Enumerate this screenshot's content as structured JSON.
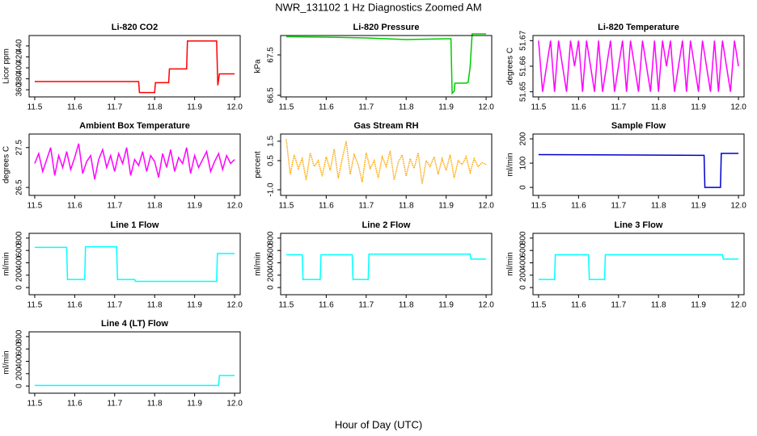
{
  "title": "NWR_131102  1 Hz Diagnostics Zoomed AM",
  "xlabel": "Hour of Day (UTC)",
  "chart_data": [
    {
      "type": "line",
      "title": "Li-820 CO2",
      "ylabel": "Licor ppm",
      "color": "#ff0000",
      "xlim": [
        11.486,
        12.014
      ],
      "xticks": [
        11.5,
        11.6,
        11.7,
        11.8,
        11.9,
        {
          "value": 12,
          "label": "12.0"
        }
      ],
      "ylim": [
        347,
        459
      ],
      "yticks": [
        360,
        380,
        400,
        420,
        440
      ],
      "x": [
        11.5,
        11.76,
        11.762,
        11.8,
        11.802,
        11.835,
        11.837,
        11.88,
        11.882,
        11.955,
        11.958,
        11.962,
        11.965,
        12.0
      ],
      "values": [
        375,
        375,
        355,
        355,
        373,
        373,
        398,
        398,
        449,
        449,
        368,
        389,
        389,
        389
      ]
    },
    {
      "type": "line",
      "title": "Li-820 Pressure",
      "ylabel": "kPa",
      "color": "#00cc00",
      "xlim": [
        11.486,
        12.014
      ],
      "xticks": [
        11.5,
        11.6,
        11.7,
        11.8,
        11.9,
        {
          "value": 12,
          "label": "12.0"
        }
      ],
      "ylim": [
        66.46,
        67.98
      ],
      "yticks": [
        66.5,
        67.5
      ],
      "x": [
        11.5,
        11.6,
        11.7,
        11.8,
        11.9,
        11.912,
        11.915,
        11.92,
        11.922,
        11.95,
        11.955,
        11.96,
        11.965,
        12.0
      ],
      "values": [
        67.95,
        67.94,
        67.92,
        67.88,
        67.9,
        67.9,
        66.55,
        66.6,
        66.8,
        66.8,
        66.82,
        67.2,
        68.02,
        68.02
      ]
    },
    {
      "type": "line",
      "title": "Li-820 Temperature",
      "ylabel": "degrees C",
      "color": "#ff00ff",
      "xlim": [
        11.486,
        12.014
      ],
      "xticks": [
        11.5,
        11.6,
        11.7,
        11.8,
        11.9,
        {
          "value": 12,
          "label": "12.0"
        }
      ],
      "ylim": [
        51.648,
        51.672
      ],
      "yticks": [
        51.65,
        51.66,
        51.67
      ],
      "x": [
        11.5,
        11.51,
        11.52,
        11.53,
        11.54,
        11.55,
        11.56,
        11.57,
        11.58,
        11.59,
        11.6,
        11.61,
        11.62,
        11.63,
        11.64,
        11.65,
        11.66,
        11.67,
        11.68,
        11.69,
        11.7,
        11.71,
        11.72,
        11.73,
        11.74,
        11.75,
        11.76,
        11.77,
        11.78,
        11.79,
        11.8,
        11.81,
        11.82,
        11.83,
        11.84,
        11.85,
        11.86,
        11.87,
        11.88,
        11.89,
        11.9,
        11.91,
        11.92,
        11.93,
        11.94,
        11.95,
        11.96,
        11.97,
        11.98,
        11.99,
        12.0
      ],
      "values": [
        51.67,
        51.65,
        51.66,
        51.67,
        51.65,
        51.67,
        51.66,
        51.65,
        51.67,
        51.66,
        51.67,
        51.65,
        51.67,
        51.66,
        51.65,
        51.67,
        51.65,
        51.66,
        51.67,
        51.65,
        51.66,
        51.67,
        51.65,
        51.67,
        51.66,
        51.65,
        51.67,
        51.66,
        51.65,
        51.67,
        51.65,
        51.67,
        51.66,
        51.67,
        51.65,
        51.66,
        51.67,
        51.65,
        51.67,
        51.66,
        51.65,
        51.67,
        51.66,
        51.65,
        51.67,
        51.65,
        51.67,
        51.66,
        51.65,
        51.67,
        51.66
      ]
    },
    {
      "type": "line",
      "title": "Ambient Box Temperature",
      "ylabel": "degrees C",
      "color": "#ff00ff",
      "xlim": [
        11.486,
        12.014
      ],
      "xticks": [
        11.5,
        11.6,
        11.7,
        11.8,
        11.9,
        {
          "value": 12,
          "label": "12.0"
        }
      ],
      "ylim": [
        26.3,
        27.84
      ],
      "yticks": [
        26.5,
        27.5
      ],
      "x": [
        11.5,
        11.51,
        11.52,
        11.53,
        11.54,
        11.55,
        11.56,
        11.57,
        11.58,
        11.59,
        11.6,
        11.61,
        11.62,
        11.63,
        11.64,
        11.65,
        11.66,
        11.67,
        11.68,
        11.69,
        11.7,
        11.71,
        11.72,
        11.73,
        11.74,
        11.75,
        11.76,
        11.77,
        11.78,
        11.79,
        11.8,
        11.81,
        11.82,
        11.83,
        11.84,
        11.85,
        11.86,
        11.87,
        11.88,
        11.89,
        11.9,
        11.91,
        11.92,
        11.93,
        11.94,
        11.95,
        11.96,
        11.97,
        11.98,
        11.99,
        12.0
      ],
      "values": [
        27.1,
        27.35,
        26.9,
        27.2,
        27.5,
        26.8,
        27.3,
        27.0,
        27.4,
        26.95,
        27.25,
        27.6,
        26.85,
        27.15,
        27.3,
        26.7,
        27.2,
        27.45,
        27.0,
        27.3,
        26.9,
        27.35,
        27.1,
        27.5,
        26.8,
        27.2,
        27.05,
        27.4,
        26.9,
        27.3,
        27.15,
        26.75,
        27.35,
        27.0,
        27.45,
        26.9,
        27.25,
        27.1,
        27.5,
        26.85,
        27.3,
        27.0,
        27.2,
        27.4,
        26.9,
        27.15,
        27.35,
        26.95,
        27.3,
        27.1,
        27.2
      ]
    },
    {
      "type": "line",
      "title": "Gas Stream RH",
      "ylabel": "percent",
      "color": "#ffa500",
      "line_style": "dotted",
      "xlim": [
        11.486,
        12.014
      ],
      "xticks": [
        11.5,
        11.6,
        11.7,
        11.8,
        11.9,
        {
          "value": 12,
          "label": "12.0"
        }
      ],
      "ylim": [
        -1.29,
        1.87
      ],
      "yticks": [
        {
          "value": -1,
          "label": "-1.0"
        },
        0.5,
        1.5
      ],
      "x": [
        11.5,
        11.51,
        11.52,
        11.53,
        11.54,
        11.55,
        11.56,
        11.57,
        11.58,
        11.59,
        11.6,
        11.61,
        11.62,
        11.63,
        11.64,
        11.65,
        11.66,
        11.67,
        11.68,
        11.69,
        11.7,
        11.71,
        11.72,
        11.73,
        11.74,
        11.75,
        11.76,
        11.77,
        11.78,
        11.79,
        11.8,
        11.81,
        11.82,
        11.83,
        11.84,
        11.85,
        11.86,
        11.87,
        11.88,
        11.89,
        11.9,
        11.91,
        11.92,
        11.93,
        11.94,
        11.95,
        11.96,
        11.97,
        11.98,
        11.99,
        12.0
      ],
      "values": [
        1.6,
        -0.2,
        0.8,
        0.1,
        0.6,
        -0.5,
        0.9,
        0.2,
        0.5,
        -0.3,
        0.7,
        0.0,
        1.1,
        -0.4,
        0.6,
        1.5,
        -0.2,
        0.8,
        0.3,
        -0.6,
        0.9,
        0.1,
        0.5,
        -0.4,
        0.7,
        0.2,
        1.0,
        -0.5,
        0.4,
        0.8,
        -0.3,
        0.6,
        0.1,
        0.9,
        -0.7,
        0.5,
        0.2,
        0.7,
        -0.2,
        0.6,
        0.0,
        0.8,
        -0.4,
        0.5,
        0.3,
        0.7,
        -0.1,
        0.6,
        0.2,
        0.4,
        0.3
      ]
    },
    {
      "type": "line",
      "title": "Sample Flow",
      "ylabel": "ml/min",
      "color": "#0000cc",
      "xlim": [
        11.486,
        12.014
      ],
      "xticks": [
        11.5,
        11.6,
        11.7,
        11.8,
        11.9,
        {
          "value": 12,
          "label": "12.0"
        }
      ],
      "ylim": [
        -33,
        220
      ],
      "yticks": [
        0,
        100,
        200
      ],
      "x": [
        11.5,
        11.7,
        11.9,
        11.914,
        11.916,
        11.955,
        11.957,
        12.0
      ],
      "values": [
        135,
        134,
        132,
        132,
        0,
        0,
        140,
        140
      ]
    },
    {
      "type": "line",
      "title": "Line 1 Flow",
      "ylabel": "ml/min",
      "color": "#00ffff",
      "xlim": [
        11.486,
        12.014
      ],
      "xticks": [
        11.5,
        11.6,
        11.7,
        11.8,
        11.9,
        {
          "value": 12,
          "label": "12.0"
        }
      ],
      "ylim": [
        -116,
        877
      ],
      "yticks": [
        0,
        200,
        400,
        600,
        800
      ],
      "x": [
        11.5,
        11.58,
        11.582,
        11.625,
        11.627,
        11.705,
        11.707,
        11.75,
        11.752,
        11.955,
        11.957,
        12.0
      ],
      "values": [
        650,
        650,
        130,
        130,
        660,
        660,
        130,
        130,
        100,
        100,
        550,
        550
      ]
    },
    {
      "type": "line",
      "title": "Line 2 Flow",
      "ylabel": "ml/min",
      "color": "#00ffff",
      "xlim": [
        11.486,
        12.014
      ],
      "xticks": [
        11.5,
        11.6,
        11.7,
        11.8,
        11.9,
        {
          "value": 12,
          "label": "12.0"
        }
      ],
      "ylim": [
        -116,
        877
      ],
      "yticks": [
        0,
        200,
        400,
        600,
        800
      ],
      "x": [
        11.5,
        11.54,
        11.542,
        11.585,
        11.587,
        11.665,
        11.667,
        11.705,
        11.707,
        11.96,
        11.962,
        12.0
      ],
      "values": [
        530,
        530,
        130,
        130,
        530,
        530,
        130,
        130,
        540,
        540,
        460,
        460
      ]
    },
    {
      "type": "line",
      "title": "Line 3 Flow",
      "ylabel": "ml/min",
      "color": "#00ffff",
      "xlim": [
        11.486,
        12.014
      ],
      "xticks": [
        11.5,
        11.6,
        11.7,
        11.8,
        11.9,
        {
          "value": 12,
          "label": "12.0"
        }
      ],
      "ylim": [
        -116,
        877
      ],
      "yticks": [
        0,
        200,
        400,
        600,
        800
      ],
      "x": [
        11.5,
        11.54,
        11.542,
        11.625,
        11.627,
        11.665,
        11.667,
        11.96,
        11.962,
        12.0
      ],
      "values": [
        130,
        130,
        530,
        530,
        130,
        130,
        530,
        530,
        460,
        460
      ]
    },
    {
      "type": "line",
      "title": "Line 4 (LT) Flow",
      "ylabel": "ml/min",
      "color": "#00ffff",
      "xlim": [
        11.486,
        12.014
      ],
      "xticks": [
        11.5,
        11.6,
        11.7,
        11.8,
        11.9,
        {
          "value": 12,
          "label": "12.0"
        }
      ],
      "ylim": [
        -116,
        877
      ],
      "yticks": [
        0,
        200,
        400,
        600,
        800
      ],
      "x": [
        11.5,
        11.96,
        11.962,
        12.0
      ],
      "values": [
        10,
        10,
        170,
        170
      ]
    }
  ]
}
